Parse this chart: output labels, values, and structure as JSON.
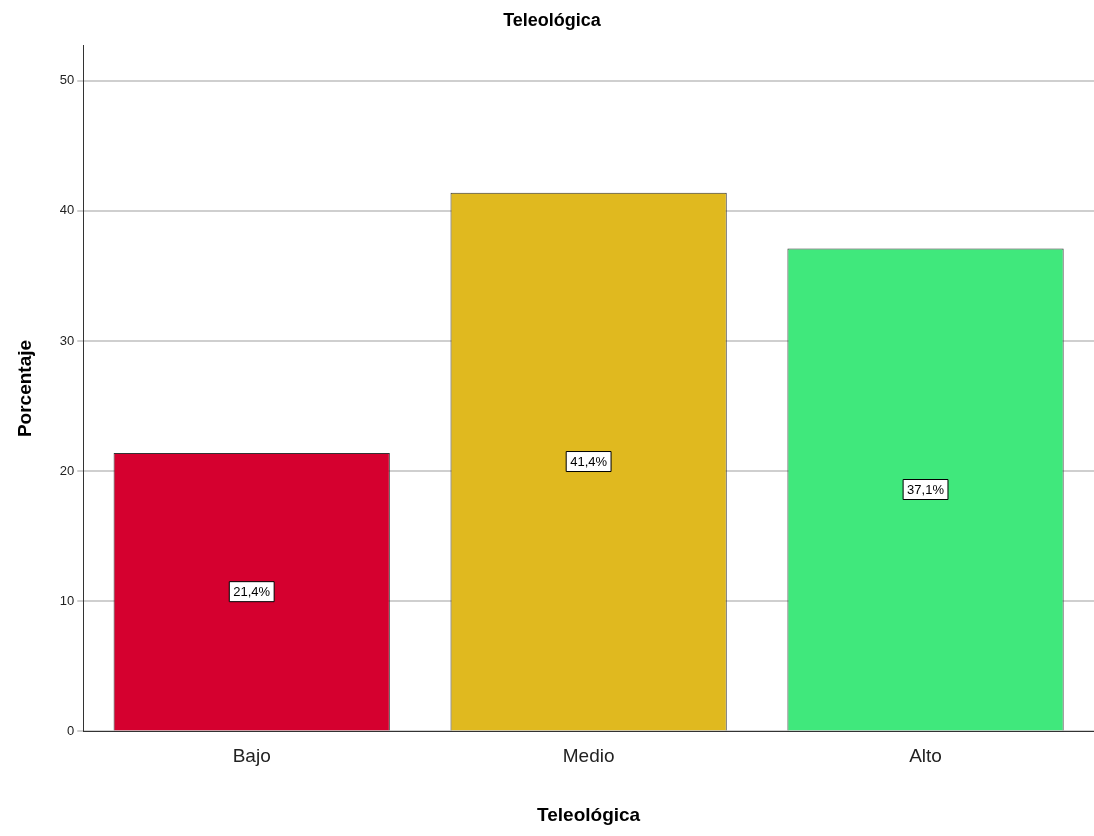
{
  "chart_data": {
    "type": "bar",
    "title": "Teleológica",
    "xlabel": "Teleológica",
    "ylabel": "Porcentaje",
    "categories": [
      "Bajo",
      "Medio",
      "Alto"
    ],
    "values": [
      21.4,
      41.4,
      37.1
    ],
    "colors": [
      "#d5002f",
      "#e0b91f",
      "#40e87c"
    ],
    "value_labels": [
      "21,4%",
      "41,4%",
      "37,1%"
    ],
    "ylim": [
      0,
      52.7
    ],
    "yticks": [
      0,
      10,
      20,
      30,
      40,
      50
    ],
    "grid": "y",
    "legend": false
  }
}
